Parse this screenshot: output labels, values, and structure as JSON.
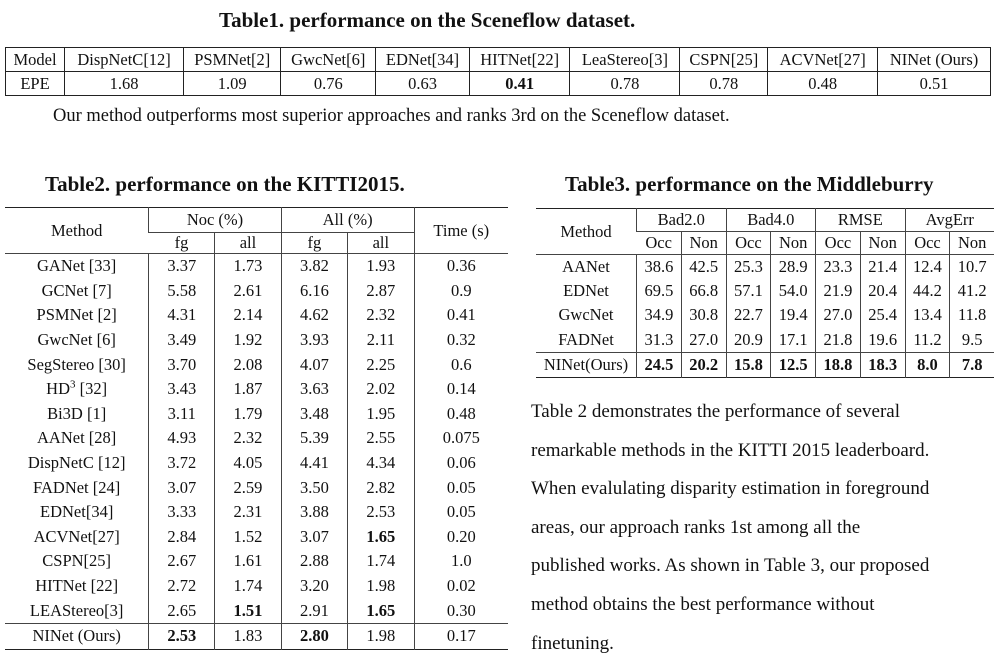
{
  "table1": {
    "title": "Table1. performance on the Sceneflow dataset.",
    "header": [
      "Model",
      "DispNetC[12]",
      "PSMNet[2]",
      "GwcNet[6]",
      "EDNet[34]",
      "HITNet[22]",
      "LeaStereo[3]",
      "CSPN[25]",
      "ACVNet[27]",
      "NINet (Ours)"
    ],
    "row": [
      "EPE",
      "1.68",
      "1.09",
      "0.76",
      "0.63",
      "0.41",
      "0.78",
      "0.78",
      "0.48",
      "0.51"
    ],
    "caption": "Our method outperforms most  superior approaches and ranks 3rd on the Sceneflow dataset."
  },
  "table2": {
    "title": "Table2. performance on the KITTI2015.",
    "col_method": "Method",
    "col_noc": "Noc (%)",
    "col_all": "All (%)",
    "col_time": "Time (s)",
    "sub_fg": "fg",
    "sub_all": "all",
    "rows": [
      {
        "method": "GANet [33]",
        "noc_fg": "3.37",
        "noc_all": "1.73",
        "all_fg": "3.82",
        "all_all": "1.93",
        "time": "0.36"
      },
      {
        "method": "GCNet [7]",
        "noc_fg": "5.58",
        "noc_all": "2.61",
        "all_fg": "6.16",
        "all_all": "2.87",
        "time": "0.9"
      },
      {
        "method": "PSMNet [2]",
        "noc_fg": "4.31",
        "noc_all": "2.14",
        "all_fg": "4.62",
        "all_all": "2.32",
        "time": "0.41"
      },
      {
        "method": "GwcNet [6]",
        "noc_fg": "3.49",
        "noc_all": "1.92",
        "all_fg": "3.93",
        "all_all": "2.11",
        "time": "0.32"
      },
      {
        "method": "SegStereo [30]",
        "noc_fg": "3.70",
        "noc_all": "2.08",
        "all_fg": "4.07",
        "all_all": "2.25",
        "time": "0.6"
      },
      {
        "method_base": "HD",
        "method_sup": "3",
        "method_tail": " [32]",
        "noc_fg": "3.43",
        "noc_all": "1.87",
        "all_fg": "3.63",
        "all_all": "2.02",
        "time": "0.14"
      },
      {
        "method": "Bi3D [1]",
        "noc_fg": "3.11",
        "noc_all": "1.79",
        "all_fg": "3.48",
        "all_all": "1.95",
        "time": "0.48"
      },
      {
        "method": "AANet [28]",
        "noc_fg": "4.93",
        "noc_all": "2.32",
        "all_fg": "5.39",
        "all_all": "2.55",
        "time": "0.075"
      },
      {
        "method": "DispNetC [12]",
        "noc_fg": "3.72",
        "noc_all": "4.05",
        "all_fg": "4.41",
        "all_all": "4.34",
        "time": "0.06"
      },
      {
        "method": "FADNet [24]",
        "noc_fg": "3.07",
        "noc_all": "2.59",
        "all_fg": "3.50",
        "all_all": "2.82",
        "time": "0.05"
      },
      {
        "method": "EDNet[34]",
        "noc_fg": "3.33",
        "noc_all": "2.31",
        "all_fg": "3.88",
        "all_all": "2.53",
        "time": "0.05"
      },
      {
        "method": "ACVNet[27]",
        "noc_fg": "2.84",
        "noc_all": "1.52",
        "all_fg": "3.07",
        "all_all": "1.65",
        "time": "0.20"
      },
      {
        "method": "CSPN[25]",
        "noc_fg": "2.67",
        "noc_all": "1.61",
        "all_fg": "2.88",
        "all_all": "1.74",
        "time": "1.0"
      },
      {
        "method": "HITNet [22]",
        "noc_fg": "2.72",
        "noc_all": "1.74",
        "all_fg": "3.20",
        "all_all": "1.98",
        "time": "0.02"
      },
      {
        "method": "LEAStereo[3]",
        "noc_fg": "2.65",
        "noc_all": "1.51",
        "all_fg": "2.91",
        "all_all": "1.65",
        "time": "0.30"
      },
      {
        "method": "NINet (Ours)",
        "noc_fg": "2.53",
        "noc_all": "1.83",
        "all_fg": "2.80",
        "all_all": "1.98",
        "time": "0.17"
      }
    ]
  },
  "table3": {
    "title": "Table3. performance on the Middleburry",
    "col_method": "Method",
    "groups": [
      "Bad2.0",
      "Bad4.0",
      "RMSE",
      "AvgErr"
    ],
    "sub_occ": "Occ",
    "sub_non": "Non",
    "rows": [
      {
        "method": "AANet",
        "vals": [
          "38.6",
          "42.5",
          "25.3",
          "28.9",
          "23.3",
          "21.4",
          "12.4",
          "10.7"
        ]
      },
      {
        "method": "EDNet",
        "vals": [
          "69.5",
          "66.8",
          "57.1",
          "54.0",
          "21.9",
          "20.4",
          "44.2",
          "41.2"
        ]
      },
      {
        "method": "GwcNet",
        "vals": [
          "34.9",
          "30.8",
          "22.7",
          "19.4",
          "27.0",
          "25.4",
          "13.4",
          "11.8"
        ]
      },
      {
        "method": "FADNet",
        "vals": [
          "31.3",
          "27.0",
          "20.9",
          "17.1",
          "21.8",
          "19.6",
          "11.2",
          "9.5"
        ]
      },
      {
        "method": "NINet(Ours)",
        "vals": [
          "24.5",
          "20.2",
          "15.8",
          "12.5",
          "18.8",
          "18.3",
          "8.0",
          "7.8"
        ]
      }
    ]
  },
  "paragraph": {
    "lines": [
      "Table 2 demonstrates the performance of several",
      "remarkable methods in the KITTI 2015 leaderboard.",
      "When evalulating disparity estimation in foreground",
      "areas, our approach ranks 1st among all the",
      "published works. As shown in Table 3, our proposed",
      "method obtains the best performance without",
      "finetuning."
    ]
  }
}
